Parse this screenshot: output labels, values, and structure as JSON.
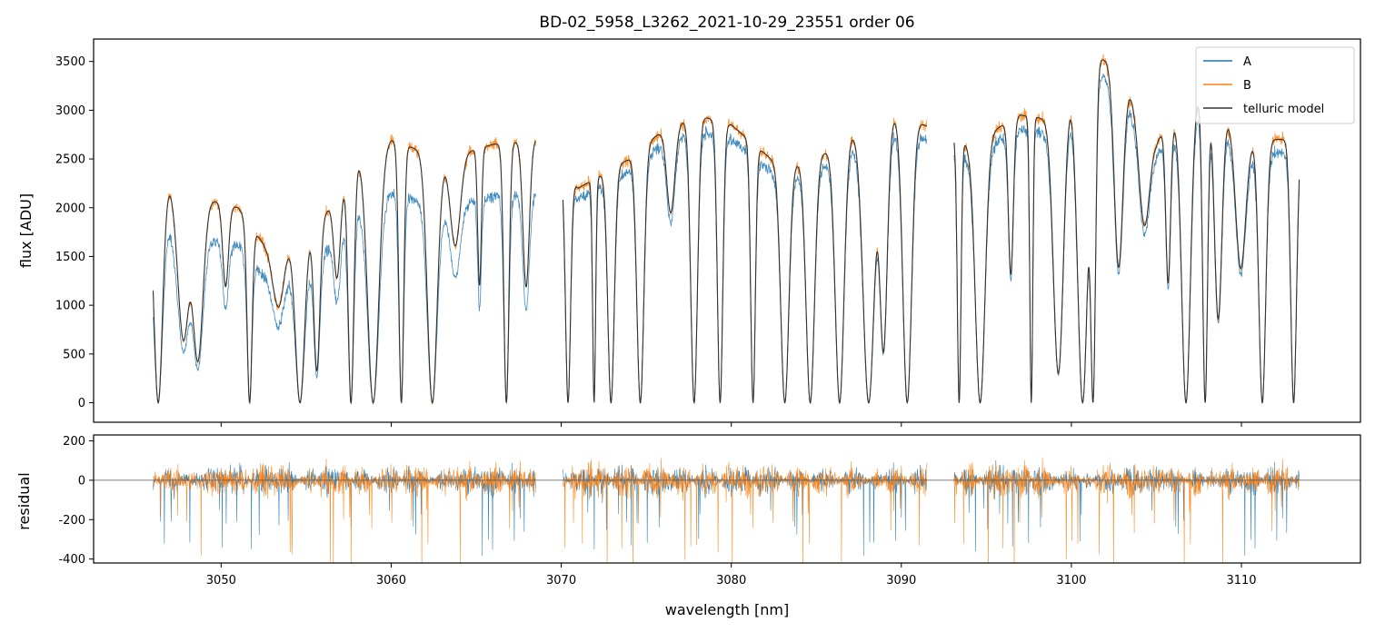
{
  "chart_data": [
    {
      "type": "line",
      "panel": "main",
      "title": "BD-02_5958_L3262_2021-10-29_23551  order 06",
      "xlabel": "",
      "ylabel": "flux [ADU]",
      "xlim": [
        3042.5,
        3117.0
      ],
      "ylim": [
        -200,
        3730
      ],
      "y_ticks": [
        0,
        500,
        1000,
        1500,
        2000,
        2500,
        3000,
        3500
      ],
      "x_ticks": [
        3050,
        3060,
        3070,
        3080,
        3090,
        3100,
        3110
      ],
      "legend_position": "top-right",
      "legend": [
        "A",
        "B",
        "telluric model"
      ],
      "x_ranges": [
        [
          3046.0,
          3068.5
        ],
        [
          3070.1,
          3091.5
        ],
        [
          3093.1,
          3113.4
        ]
      ],
      "continuum_anchors": {
        "x": [
          3046,
          3047,
          3049,
          3051,
          3053,
          3056,
          3058,
          3060,
          3063,
          3066,
          3068.5,
          3071,
          3074,
          3076,
          3078,
          3080,
          3083,
          3086,
          3088,
          3090,
          3094,
          3097,
          3099,
          3101,
          3102.5,
          3105,
          3108,
          3110,
          3113.4
        ],
        "y": [
          2200,
          2250,
          2100,
          2000,
          1500,
          1900,
          2500,
          2700,
          2500,
          2650,
          2700,
          2200,
          2500,
          2800,
          2950,
          2850,
          2400,
          2600,
          2900,
          2950,
          2650,
          2950,
          2900,
          3550,
          3500,
          2700,
          3250,
          2700,
          2700
        ]
      },
      "series": [
        {
          "name": "A",
          "color": "#1f77b4",
          "scale_below_3068": 0.8
        },
        {
          "name": "B",
          "color": "#ff7f0e",
          "scale_below_3068": 1.0
        },
        {
          "name": "telluric model",
          "color": "#333333"
        }
      ]
    },
    {
      "type": "line",
      "panel": "residual",
      "xlabel": "wavelength [nm]",
      "ylabel": "residual",
      "xlim": [
        3042.5,
        3117.0
      ],
      "ylim": [
        -420,
        230
      ],
      "y_ticks": [
        -400,
        -200,
        0,
        200
      ],
      "x_ticks": [
        3050,
        3060,
        3070,
        3080,
        3090,
        3100,
        3110
      ],
      "series": [
        {
          "name": "A",
          "color": "#1f77b4"
        },
        {
          "name": "B",
          "color": "#ff7f0e"
        }
      ]
    }
  ]
}
